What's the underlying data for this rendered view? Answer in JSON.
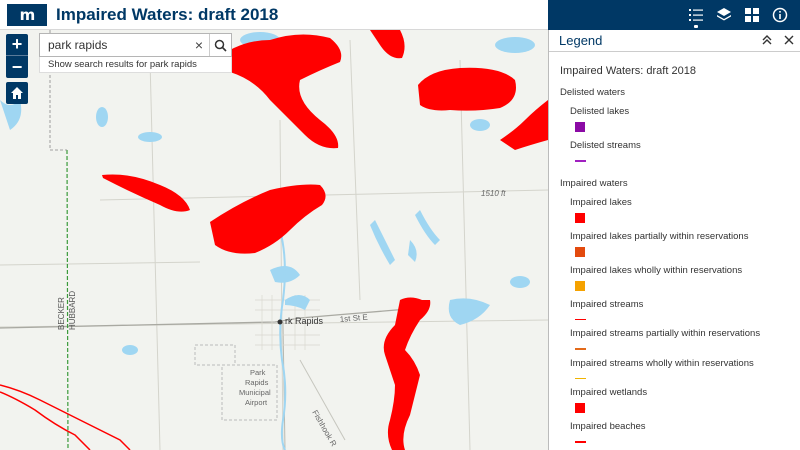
{
  "header": {
    "logo_text": "m",
    "title": "Impaired Waters: draft 2018"
  },
  "search": {
    "value": "park rapids",
    "clear_icon": "×",
    "suggestion": "Show search results for park rapids"
  },
  "map_controls": {
    "zoom_in": "+",
    "zoom_out": "−"
  },
  "map_labels": {
    "elevation": "1510 ft",
    "town": "Park Rapids",
    "town_partial": "rk Rapids",
    "street": "1st St E",
    "airport": [
      "Park",
      "Rapids",
      "Municipal",
      "Airport"
    ],
    "county_west": "BECKER",
    "county_east": "HUBBARD",
    "river": "Fishhook R"
  },
  "toolbar": {
    "icons": [
      "legend-list-icon",
      "layers-icon",
      "basemap-gallery-icon",
      "about-icon"
    ]
  },
  "legend": {
    "panel_title": "Legend",
    "layer_title": "Impaired Waters: draft 2018",
    "groups": [
      {
        "title": "Delisted waters",
        "items": [
          {
            "label": "Delisted lakes",
            "type": "fill",
            "color": "#8b0aa5"
          },
          {
            "label": "Delisted streams",
            "type": "line",
            "color": "#a020c0"
          }
        ]
      },
      {
        "title": "Impaired waters",
        "items": [
          {
            "label": "Impaired lakes",
            "type": "fill",
            "color": "#ff0000"
          },
          {
            "label": "Impaired lakes partially within reservations",
            "type": "fill",
            "color": "#e34a0e"
          },
          {
            "label": "Impaired lakes wholly within reservations",
            "type": "fill",
            "color": "#f5a200"
          },
          {
            "label": "Impaired streams",
            "type": "line",
            "color": "#ff0000"
          },
          {
            "label": "Impaired streams partially within reservations",
            "type": "line",
            "color": "#e36a1a"
          },
          {
            "label": "Impaired streams wholly within reservations",
            "type": "line",
            "color": "#f0b400"
          },
          {
            "label": "Impaired wetlands",
            "type": "fill",
            "color": "#ff0000"
          },
          {
            "label": "Impaired beaches",
            "type": "line",
            "color": "#ff0000"
          }
        ]
      }
    ]
  },
  "colors": {
    "brand": "#003865",
    "impaired": "#ff0000",
    "water": "#9fd6f2",
    "land": "#f2f3ef"
  }
}
